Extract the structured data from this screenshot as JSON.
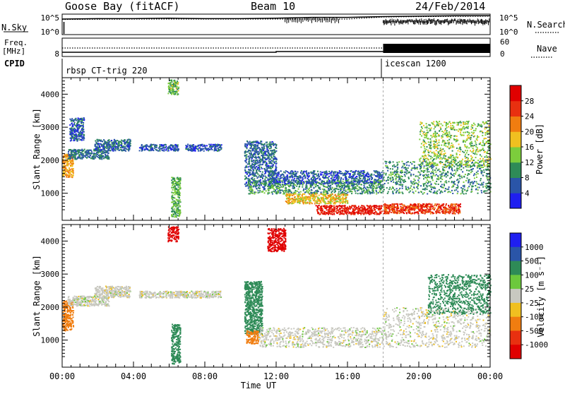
{
  "header": {
    "station": "Goose Bay (fitACF)",
    "beam": "Beam 10",
    "date": "24/Feb/2014"
  },
  "sky_panel": {
    "left_label": "N.Sky",
    "right_label": "N.Search",
    "left_ticks": [
      "10^5",
      "10^0"
    ],
    "right_ticks": [
      "10^5",
      "10^0"
    ]
  },
  "freq_panel": {
    "left_label_line1": "Freq.",
    "left_label_line2": "[MHz]",
    "right_label": "Nave",
    "left_ticks": [
      "8"
    ],
    "right_ticks": [
      "60",
      "0"
    ]
  },
  "cpid_panel": {
    "label": "CPID",
    "segments": [
      {
        "name": "rbsp CT-trig 220",
        "start_hour": 0
      },
      {
        "name": "icescan 1200",
        "start_hour": 18
      }
    ]
  },
  "time_axis": {
    "label": "Time UT",
    "ticks": [
      "00:00",
      "04:00",
      "08:00",
      "12:00",
      "16:00",
      "20:00",
      "00:00"
    ]
  },
  "power_panel": {
    "ylabel": "Slant Range [km]",
    "yticks": [
      "1000",
      "2000",
      "3000",
      "4000"
    ],
    "colorbar_label": "Power [dB]",
    "colorbar_ticks": [
      "4",
      "8",
      "12",
      "16",
      "20",
      "24",
      "28"
    ],
    "colors": [
      "#1f1ff0",
      "#2a55a8",
      "#2e8b57",
      "#7ccd3c",
      "#f0c020",
      "#f07d10",
      "#e83010",
      "#e00000"
    ]
  },
  "velocity_panel": {
    "ylabel": "Slant Range [km]",
    "yticks": [
      "1000",
      "2000",
      "3000",
      "4000"
    ],
    "colorbar_label": "Velocity [m s⁻¹]",
    "colorbar_ticks": [
      "1000",
      "500",
      "100",
      "25",
      "-25",
      "-100",
      "-500",
      "-1000"
    ],
    "colors": [
      "#1f1ff0",
      "#2a55a8",
      "#2e8b57",
      "#6cc83c",
      "#c8c8c0",
      "#f0c020",
      "#f07d10",
      "#e83010",
      "#e00000"
    ]
  },
  "chart_data": [
    {
      "type": "line",
      "title": "N.Sky / N.Search",
      "x_unit": "hours UT",
      "ylim_log10": [
        0,
        5
      ],
      "series": [
        {
          "name": "N.Sky",
          "x": [
            0,
            2,
            4,
            6,
            8,
            10,
            12,
            14,
            16,
            18,
            20,
            22,
            24
          ],
          "log10_y": [
            3.8,
            3.9,
            3.9,
            4.0,
            3.9,
            3.9,
            4.0,
            4.2,
            4.2,
            4.4,
            4.5,
            4.6,
            4.6
          ]
        },
        {
          "name": "N.Search",
          "x": [
            0,
            4,
            8,
            12,
            16,
            18,
            20,
            24
          ],
          "log10_y": [
            3.7,
            3.8,
            3.8,
            3.8,
            3.8,
            4.3,
            4.4,
            4.5
          ]
        }
      ]
    },
    {
      "type": "line",
      "title": "Freq. [MHz] / Nave",
      "x_unit": "hours UT",
      "series": [
        {
          "name": "Freq.",
          "x": [
            0,
            6,
            12,
            18,
            24
          ],
          "y": [
            10.5,
            10.5,
            10.8,
            10.8,
            10.8
          ]
        },
        {
          "name": "Nave",
          "x": [
            0,
            18,
            18,
            24
          ],
          "y": [
            26,
            26,
            30,
            30
          ]
        }
      ]
    },
    {
      "type": "heatmap",
      "title": "Power [dB]",
      "x_unit": "hours UT",
      "y_unit": "slant range km",
      "xlim": [
        0,
        24
      ],
      "ylim": [
        180,
        4500
      ],
      "clim": [
        0,
        30
      ],
      "regions": [
        {
          "t": [
            0.0,
            0.6
          ],
          "r": [
            1500,
            2200
          ],
          "value": 20
        },
        {
          "t": [
            0.3,
            2.6
          ],
          "r": [
            2050,
            2350
          ],
          "value": 8
        },
        {
          "t": [
            0.4,
            1.2
          ],
          "r": [
            2600,
            3300
          ],
          "value": 6
        },
        {
          "t": [
            1.8,
            3.8
          ],
          "r": [
            2300,
            2650
          ],
          "value": 7
        },
        {
          "t": [
            4.3,
            6.5
          ],
          "r": [
            2300,
            2500
          ],
          "value": 6
        },
        {
          "t": [
            6.9,
            8.9
          ],
          "r": [
            2300,
            2500
          ],
          "value": 6
        },
        {
          "t": [
            5.9,
            6.5
          ],
          "r": [
            4000,
            4450
          ],
          "value": 13
        },
        {
          "t": [
            6.1,
            6.6
          ],
          "r": [
            300,
            1500
          ],
          "value": 12
        },
        {
          "t": [
            10.2,
            12.0
          ],
          "r": [
            1200,
            2600
          ],
          "value": 7
        },
        {
          "t": [
            10.4,
            18.0
          ],
          "r": [
            1000,
            1400
          ],
          "value": 10
        },
        {
          "t": [
            11.5,
            18.0
          ],
          "r": [
            1300,
            1700
          ],
          "value": 6
        },
        {
          "t": [
            12.5,
            16.0
          ],
          "r": [
            700,
            1000
          ],
          "value": 18
        },
        {
          "t": [
            14.2,
            17.9
          ],
          "r": [
            380,
            650
          ],
          "value": 28
        },
        {
          "t": [
            18.0,
            24.0
          ],
          "r": [
            1000,
            2000
          ],
          "value": 10
        },
        {
          "t": [
            20.0,
            24.0
          ],
          "r": [
            1800,
            3200
          ],
          "value": 14
        },
        {
          "t": [
            18.0,
            22.3
          ],
          "r": [
            400,
            700
          ],
          "value": 26
        }
      ]
    },
    {
      "type": "heatmap",
      "title": "Velocity [m s⁻¹]",
      "x_unit": "hours UT",
      "y_unit": "slant range km",
      "xlim": [
        0,
        24
      ],
      "ylim": [
        180,
        4500
      ],
      "regions": [
        {
          "t": [
            0.0,
            0.6
          ],
          "r": [
            1300,
            2200
          ],
          "value": -200
        },
        {
          "t": [
            0.3,
            2.6
          ],
          "r": [
            2050,
            2350
          ],
          "value": 0
        },
        {
          "t": [
            1.8,
            3.8
          ],
          "r": [
            2300,
            2650
          ],
          "value": 0
        },
        {
          "t": [
            4.3,
            8.9
          ],
          "r": [
            2300,
            2500
          ],
          "value": 0
        },
        {
          "t": [
            5.9,
            6.5
          ],
          "r": [
            4000,
            4450
          ],
          "value": -1000
        },
        {
          "t": [
            6.1,
            6.6
          ],
          "r": [
            300,
            1500
          ],
          "value": 150
        },
        {
          "t": [
            10.2,
            11.2
          ],
          "r": [
            1200,
            2800
          ],
          "value": 150
        },
        {
          "t": [
            10.3,
            11.0
          ],
          "r": [
            900,
            1300
          ],
          "value": -200
        },
        {
          "t": [
            11.0,
            18.0
          ],
          "r": [
            800,
            1400
          ],
          "value": 0
        },
        {
          "t": [
            18.0,
            24.0
          ],
          "r": [
            800,
            2000
          ],
          "value": 0
        },
        {
          "t": [
            20.5,
            24.0
          ],
          "r": [
            1800,
            3000
          ],
          "value": 150
        },
        {
          "t": [
            11.5,
            12.5
          ],
          "r": [
            3700,
            4400
          ],
          "value": -800
        }
      ]
    }
  ]
}
